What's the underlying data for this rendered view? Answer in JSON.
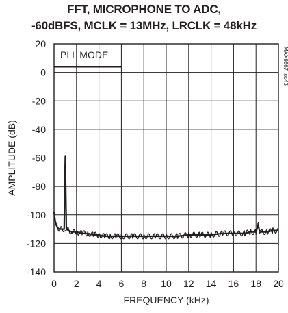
{
  "chart_data": {
    "type": "line",
    "title_line1": "FFT, MICROPHONE TO ADC,",
    "title_line2": "-60dBFS, MCLK = 13MHz, LRCLK = 48kHz",
    "xlabel": "FREQUENCY (kHz)",
    "ylabel": "AMPLITUDE (dB)",
    "xlim": [
      0,
      20
    ],
    "ylim": [
      -140,
      20
    ],
    "x_ticks": [
      0,
      2,
      4,
      6,
      8,
      10,
      12,
      14,
      16,
      18,
      20
    ],
    "y_ticks": [
      20,
      0,
      -20,
      -40,
      -60,
      -80,
      -100,
      -120,
      -140
    ],
    "grid": true,
    "annotation": "PLL MODE",
    "side_code": "MAX9867 toc43",
    "series": [
      {
        "x": [
          0.0,
          0.1,
          0.2,
          0.3,
          0.5,
          0.7,
          0.9,
          0.95,
          1.0,
          1.05,
          1.1,
          1.3,
          1.6,
          2.0,
          2.5,
          3.0,
          3.5,
          4.0,
          4.5,
          5.0,
          5.5,
          6.0,
          7.0,
          8.0,
          9.0,
          10.0,
          11.0,
          12.0,
          13.0,
          14.0,
          15.0,
          16.0,
          17.0,
          17.5,
          18.0,
          18.2,
          18.3,
          18.5,
          19.0,
          19.5,
          20.0
        ],
        "y": [
          -98,
          -104,
          -107,
          -109,
          -110,
          -110,
          -110,
          -80,
          -59,
          -85,
          -110,
          -111,
          -112,
          -112,
          -113,
          -113,
          -114,
          -114,
          -115,
          -115,
          -115,
          -115,
          -115,
          -115,
          -115,
          -115,
          -115,
          -114,
          -114,
          -114,
          -113,
          -113,
          -113,
          -112,
          -112,
          -107,
          -111,
          -112,
          -112,
          -111,
          -111
        ]
      }
    ]
  }
}
